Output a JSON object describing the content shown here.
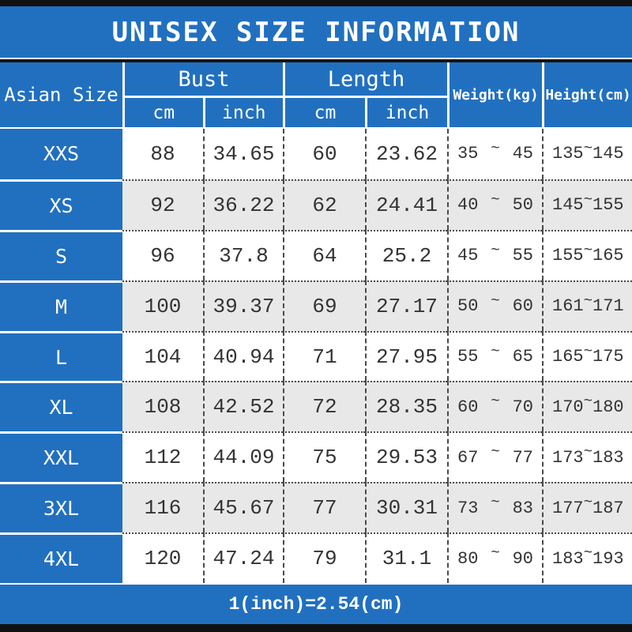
{
  "title": "UNISEX SIZE INFORMATION",
  "footer_note": "1(inch)=2.54(cm)",
  "colors": {
    "blue": "#2170c0",
    "gray": "#e8e8e8",
    "bar": "#111111",
    "ink": "#333333"
  },
  "table": {
    "size_col_header": "Asian Size",
    "bust_group_label": "Bust",
    "length_group_label": "Length",
    "unit_cm": "cm",
    "unit_inch": "inch",
    "weight_header": "Weight(kg)",
    "height_header": "Height(cm)",
    "tilde": "~",
    "rows": [
      {
        "size": "XXS",
        "bust_cm": "88",
        "bust_inch": "34.65",
        "length_cm": "60",
        "length_inch": "23.62",
        "weight_min": "35",
        "weight_max": "45",
        "height_min": "135",
        "height_max": "145"
      },
      {
        "size": "XS",
        "bust_cm": "92",
        "bust_inch": "36.22",
        "length_cm": "62",
        "length_inch": "24.41",
        "weight_min": "40",
        "weight_max": "50",
        "height_min": "145",
        "height_max": "155"
      },
      {
        "size": "S",
        "bust_cm": "96",
        "bust_inch": "37.8",
        "length_cm": "64",
        "length_inch": "25.2",
        "weight_min": "45",
        "weight_max": "55",
        "height_min": "155",
        "height_max": "165"
      },
      {
        "size": "M",
        "bust_cm": "100",
        "bust_inch": "39.37",
        "length_cm": "69",
        "length_inch": "27.17",
        "weight_min": "50",
        "weight_max": "60",
        "height_min": "161",
        "height_max": "171"
      },
      {
        "size": "L",
        "bust_cm": "104",
        "bust_inch": "40.94",
        "length_cm": "71",
        "length_inch": "27.95",
        "weight_min": "55",
        "weight_max": "65",
        "height_min": "165",
        "height_max": "175"
      },
      {
        "size": "XL",
        "bust_cm": "108",
        "bust_inch": "42.52",
        "length_cm": "72",
        "length_inch": "28.35",
        "weight_min": "60",
        "weight_max": "70",
        "height_min": "170",
        "height_max": "180"
      },
      {
        "size": "XXL",
        "bust_cm": "112",
        "bust_inch": "44.09",
        "length_cm": "75",
        "length_inch": "29.53",
        "weight_min": "67",
        "weight_max": "77",
        "height_min": "173",
        "height_max": "183"
      },
      {
        "size": "3XL",
        "bust_cm": "116",
        "bust_inch": "45.67",
        "length_cm": "77",
        "length_inch": "30.31",
        "weight_min": "73",
        "weight_max": "83",
        "height_min": "177",
        "height_max": "187"
      },
      {
        "size": "4XL",
        "bust_cm": "120",
        "bust_inch": "47.24",
        "length_cm": "79",
        "length_inch": "31.1",
        "weight_min": "80",
        "weight_max": "90",
        "height_min": "183",
        "height_max": "193"
      }
    ]
  }
}
